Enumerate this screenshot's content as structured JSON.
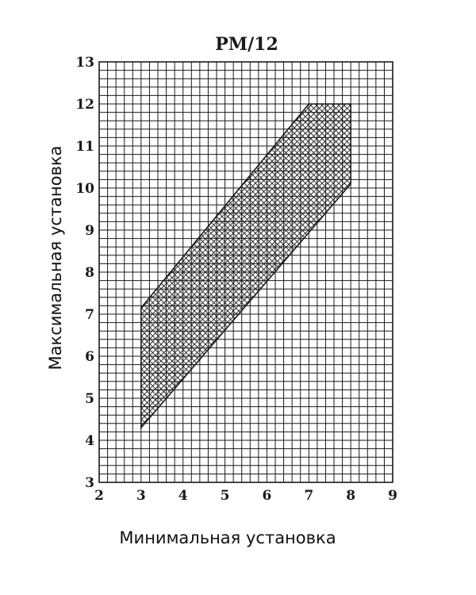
{
  "chart_data": {
    "type": "area",
    "title": "PM/12",
    "xlabel": "Минимальная установка",
    "ylabel": "Максимальная установка",
    "xlim": [
      2,
      9
    ],
    "ylim": [
      3,
      13
    ],
    "x_ticks": [
      "2",
      "3",
      "4",
      "5",
      "6",
      "7",
      "8",
      "9"
    ],
    "y_ticks": [
      "3",
      "4",
      "5",
      "6",
      "7",
      "8",
      "9",
      "10",
      "11",
      "12",
      "13"
    ],
    "grid": true,
    "grid_minor_per_unit": 5,
    "region": {
      "fill": "cross-hatched",
      "polygon": [
        {
          "x": 3,
          "y": 4.3
        },
        {
          "x": 3,
          "y": 7.15
        },
        {
          "x": 7,
          "y": 12
        },
        {
          "x": 8,
          "y": 12
        },
        {
          "x": 8,
          "y": 10.1
        }
      ]
    }
  }
}
